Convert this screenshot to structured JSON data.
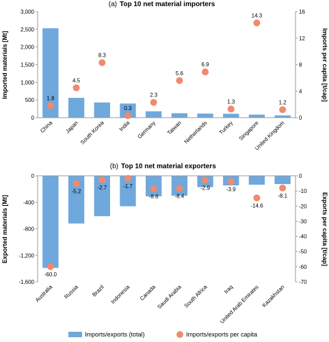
{
  "colors": {
    "bar": "#6fa8dc",
    "dot": "#f08a6c",
    "axis": "#999999"
  },
  "chart_data": [
    {
      "type": "bar",
      "panel_prefix": "(a)",
      "title": "Top 10 net material importers",
      "categories": [
        "China",
        "Japan",
        "South Korea",
        "India",
        "Germany",
        "Taiwan",
        "Netherlands",
        "Turkey",
        "Singapore",
        "United Kingdom"
      ],
      "series": [
        {
          "name": "Imports/exports (total)",
          "kind": "bar",
          "axis": "left",
          "values": [
            2530,
            560,
            430,
            400,
            180,
            125,
            115,
            110,
            85,
            65
          ]
        },
        {
          "name": "Imports/exports per capita",
          "kind": "scatter",
          "axis": "right",
          "values": [
            1.8,
            4.5,
            8.3,
            0.3,
            2.3,
            5.6,
            6.9,
            1.3,
            14.3,
            1.2
          ],
          "labels": [
            "1.8",
            "4.5",
            "8.3",
            "0.3",
            "2.3",
            "5.6",
            "6.9",
            "1.3",
            "14.3",
            "1.2"
          ]
        }
      ],
      "ylabel": "Imported materials [Mt]",
      "ylabel_right": "Imports per capita [t/cap]",
      "ylim": [
        0,
        3000
      ],
      "yticks": [
        0,
        500,
        1000,
        1500,
        2000,
        2500,
        3000
      ],
      "yticklabels": [
        "0",
        "500",
        "1,000",
        "1,500",
        "2,000",
        "2,500",
        "3,000"
      ],
      "ylim_right": [
        0,
        16
      ],
      "yticks_right": [
        0,
        4,
        8,
        12,
        16
      ],
      "yticklabels_right": [
        "0",
        "4",
        "8",
        "12",
        "16"
      ],
      "grid": false
    },
    {
      "type": "bar",
      "panel_prefix": "(b)",
      "title": "Top 10 net material exporters",
      "categories": [
        "Australia",
        "Russia",
        "Brazil",
        "Indonesia",
        "Canada",
        "Saudi Arabia",
        "South Africa",
        "Iraq",
        "United Arab Emirates",
        "Kazakhstan"
      ],
      "series": [
        {
          "name": "Imports/exports (total)",
          "kind": "bar",
          "axis": "left",
          "values": [
            -1390,
            -720,
            -610,
            -460,
            -310,
            -300,
            -170,
            -145,
            -135,
            -125
          ]
        },
        {
          "name": "Imports/exports per capita",
          "kind": "scatter",
          "axis": "right",
          "values": [
            -60.0,
            -5.2,
            -2.7,
            -1.7,
            -8.6,
            -8.4,
            -2.9,
            -3.9,
            -14.6,
            -8.1
          ],
          "labels": [
            "-60.0",
            "-5.2",
            "-2.7",
            "-1.7",
            "-8.6",
            "-8.4",
            "-2.9",
            "-3.9",
            "-14.6",
            "-8.1"
          ]
        }
      ],
      "ylabel": "Exported materials [Mt]",
      "ylabel_right": "Exports per capita [t/cap]",
      "ylim": [
        -1600,
        0
      ],
      "yticks": [
        -1600,
        -1200,
        -800,
        -400,
        0
      ],
      "yticklabels": [
        "-1,600",
        "-1,200",
        "-800",
        "-400",
        "0"
      ],
      "ylim_right": [
        -70,
        0
      ],
      "yticks_right": [
        -70,
        -60,
        -50,
        -40,
        -30,
        -20,
        -10,
        0
      ],
      "yticklabels_right": [
        "-70",
        "-60",
        "-50",
        "-40",
        "-30",
        "-20",
        "-10",
        "0"
      ],
      "grid": false
    }
  ],
  "legend": {
    "placement": "bottom-center",
    "items": [
      {
        "label": "Imports/exports (total)",
        "kind": "bar"
      },
      {
        "label": "Imports/exports per capita",
        "kind": "dot"
      }
    ]
  }
}
